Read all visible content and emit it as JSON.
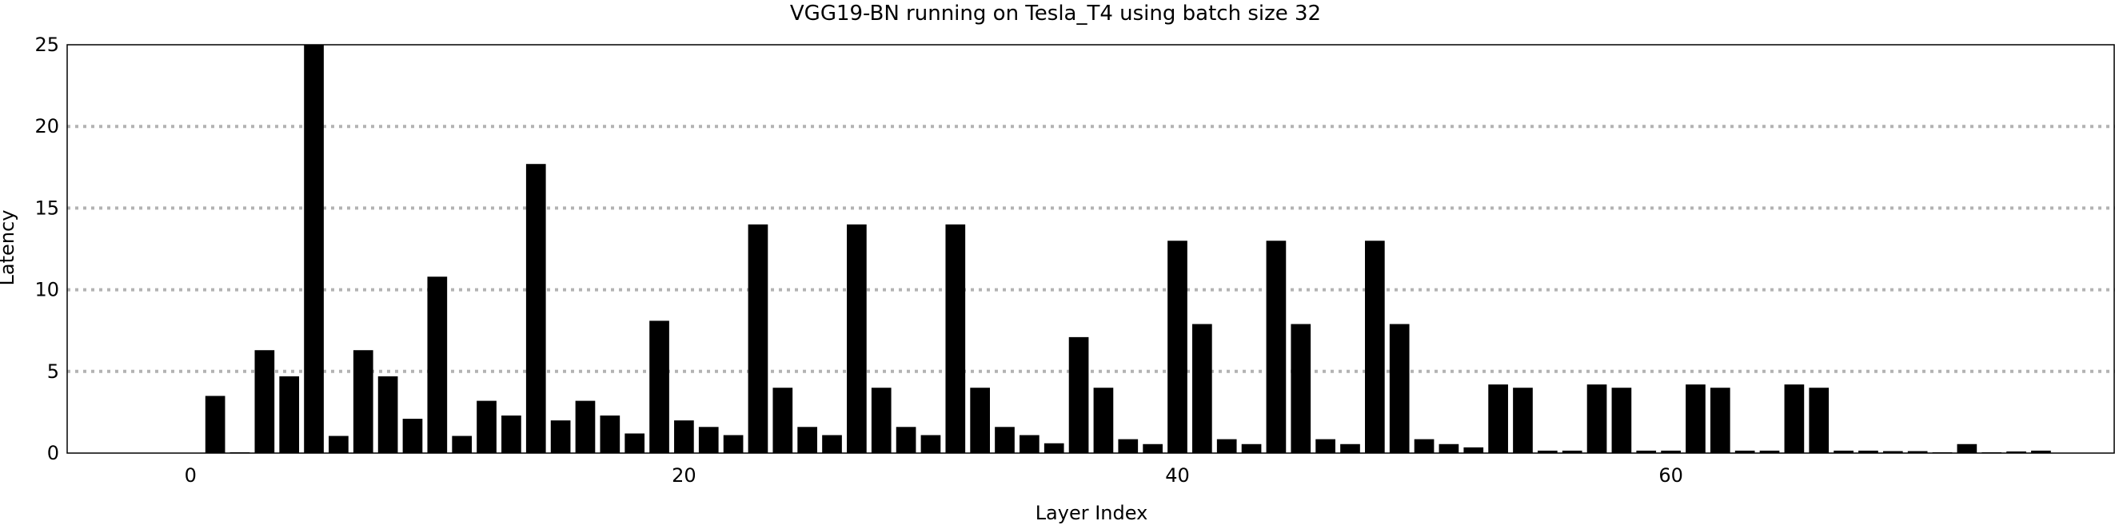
{
  "chart_data": {
    "type": "bar",
    "title": "VGG19-BN running on Tesla_T4 using batch size 32",
    "xlabel": "Layer Index",
    "ylabel": "Latency",
    "xlim": [
      -5,
      78
    ],
    "ylim": [
      0,
      25
    ],
    "xticks": [
      0,
      20,
      40,
      60
    ],
    "yticks": [
      0,
      5,
      10,
      15,
      20,
      25
    ],
    "grid": "horizontal-dotted",
    "bar_color": "#000000",
    "x": [
      0,
      1,
      2,
      3,
      4,
      5,
      6,
      7,
      8,
      9,
      10,
      11,
      12,
      13,
      14,
      15,
      16,
      17,
      18,
      19,
      20,
      21,
      22,
      23,
      24,
      25,
      26,
      27,
      28,
      29,
      30,
      31,
      32,
      33,
      34,
      35,
      36,
      37,
      38,
      39,
      40,
      41,
      42,
      43,
      44,
      45,
      46,
      47,
      48,
      49,
      50,
      51,
      52,
      53,
      54,
      55,
      56,
      57,
      58,
      59,
      60,
      61,
      62,
      63,
      64,
      65,
      66,
      67,
      68,
      69,
      70,
      71,
      72,
      73,
      74,
      75,
      76
    ],
    "values": [
      0.0,
      3.5,
      0.05,
      6.3,
      4.7,
      25.0,
      1.05,
      6.3,
      4.7,
      2.1,
      10.8,
      1.05,
      3.2,
      2.3,
      17.7,
      2.0,
      3.2,
      2.3,
      1.2,
      8.1,
      2.0,
      1.6,
      1.1,
      14.0,
      4.0,
      1.6,
      1.1,
      14.0,
      4.0,
      1.6,
      1.1,
      14.0,
      4.0,
      1.6,
      1.1,
      0.6,
      7.1,
      4.0,
      0.85,
      0.55,
      13.0,
      7.9,
      0.85,
      0.55,
      13.0,
      7.9,
      0.85,
      0.55,
      13.0,
      7.9,
      0.85,
      0.55,
      0.35,
      4.2,
      4.0,
      0.15,
      0.15,
      4.2,
      4.0,
      0.15,
      0.15,
      4.2,
      4.0,
      0.15,
      0.15,
      4.2,
      4.0,
      0.15,
      0.15,
      0.12,
      0.12,
      0.05,
      0.55,
      0.05,
      0.1,
      0.15,
      0.0
    ]
  }
}
